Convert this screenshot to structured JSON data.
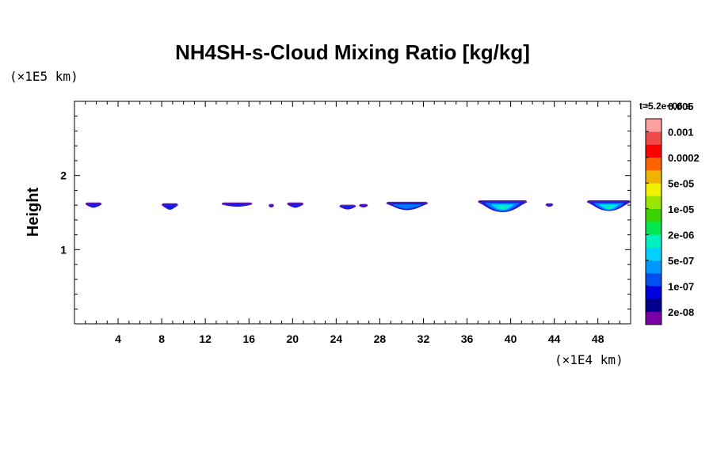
{
  "chart_data": {
    "type": "heatmap",
    "title": "NH4SH-s-Cloud Mixing Ratio [kg/kg]",
    "ylabel": "Height",
    "x_unit": "(×1E4 km)",
    "y_unit": "(×1E5 km)",
    "time_label": "t=5.2e+06 s",
    "xlim": [
      0,
      51
    ],
    "ylim": [
      0,
      3
    ],
    "x_ticks": [
      4,
      8,
      12,
      16,
      20,
      24,
      28,
      32,
      36,
      40,
      44,
      48
    ],
    "y_ticks": [
      1,
      2
    ],
    "colorbar": {
      "colors": [
        "#7a00a8",
        "#00008c",
        "#0000dc",
        "#0050f0",
        "#0096ff",
        "#00d2ff",
        "#00f0be",
        "#00e650",
        "#3cd200",
        "#9be600",
        "#f0f000",
        "#f0b400",
        "#ff6400",
        "#ff0000",
        "#f04b4b",
        "#ffa0a0"
      ],
      "labels": [
        "2e-08",
        "1e-07",
        "5e-07",
        "2e-06",
        "1e-05",
        "5e-05",
        "0.0002",
        "0.001",
        "0.005"
      ]
    },
    "cloud_patches": [
      {
        "x0": 1.0,
        "x1": 2.5,
        "top": 1.62,
        "depth": 0.07,
        "levels": 1
      },
      {
        "x0": 8.0,
        "x1": 9.5,
        "top": 1.61,
        "depth": 0.09,
        "levels": 1
      },
      {
        "x0": 13.5,
        "x1": 16.3,
        "top": 1.62,
        "depth": 0.05,
        "levels": 1
      },
      {
        "x0": 17.8,
        "x1": 18.3,
        "top": 1.6,
        "depth": 0.03,
        "levels": 1
      },
      {
        "x0": 19.5,
        "x1": 21.0,
        "top": 1.62,
        "depth": 0.07,
        "levels": 1
      },
      {
        "x0": 24.3,
        "x1": 25.8,
        "top": 1.59,
        "depth": 0.06,
        "levels": 1
      },
      {
        "x0": 26.1,
        "x1": 26.9,
        "top": 1.6,
        "depth": 0.02,
        "levels": 1
      },
      {
        "x0": 28.6,
        "x1": 32.4,
        "top": 1.63,
        "depth": 0.12,
        "levels": 2
      },
      {
        "x0": 37.0,
        "x1": 41.5,
        "top": 1.65,
        "depth": 0.18,
        "levels": 4
      },
      {
        "x0": 43.2,
        "x1": 43.9,
        "top": 1.61,
        "depth": 0.02,
        "levels": 1
      },
      {
        "x0": 47.0,
        "x1": 51.0,
        "top": 1.65,
        "depth": 0.16,
        "levels": 4
      }
    ]
  }
}
